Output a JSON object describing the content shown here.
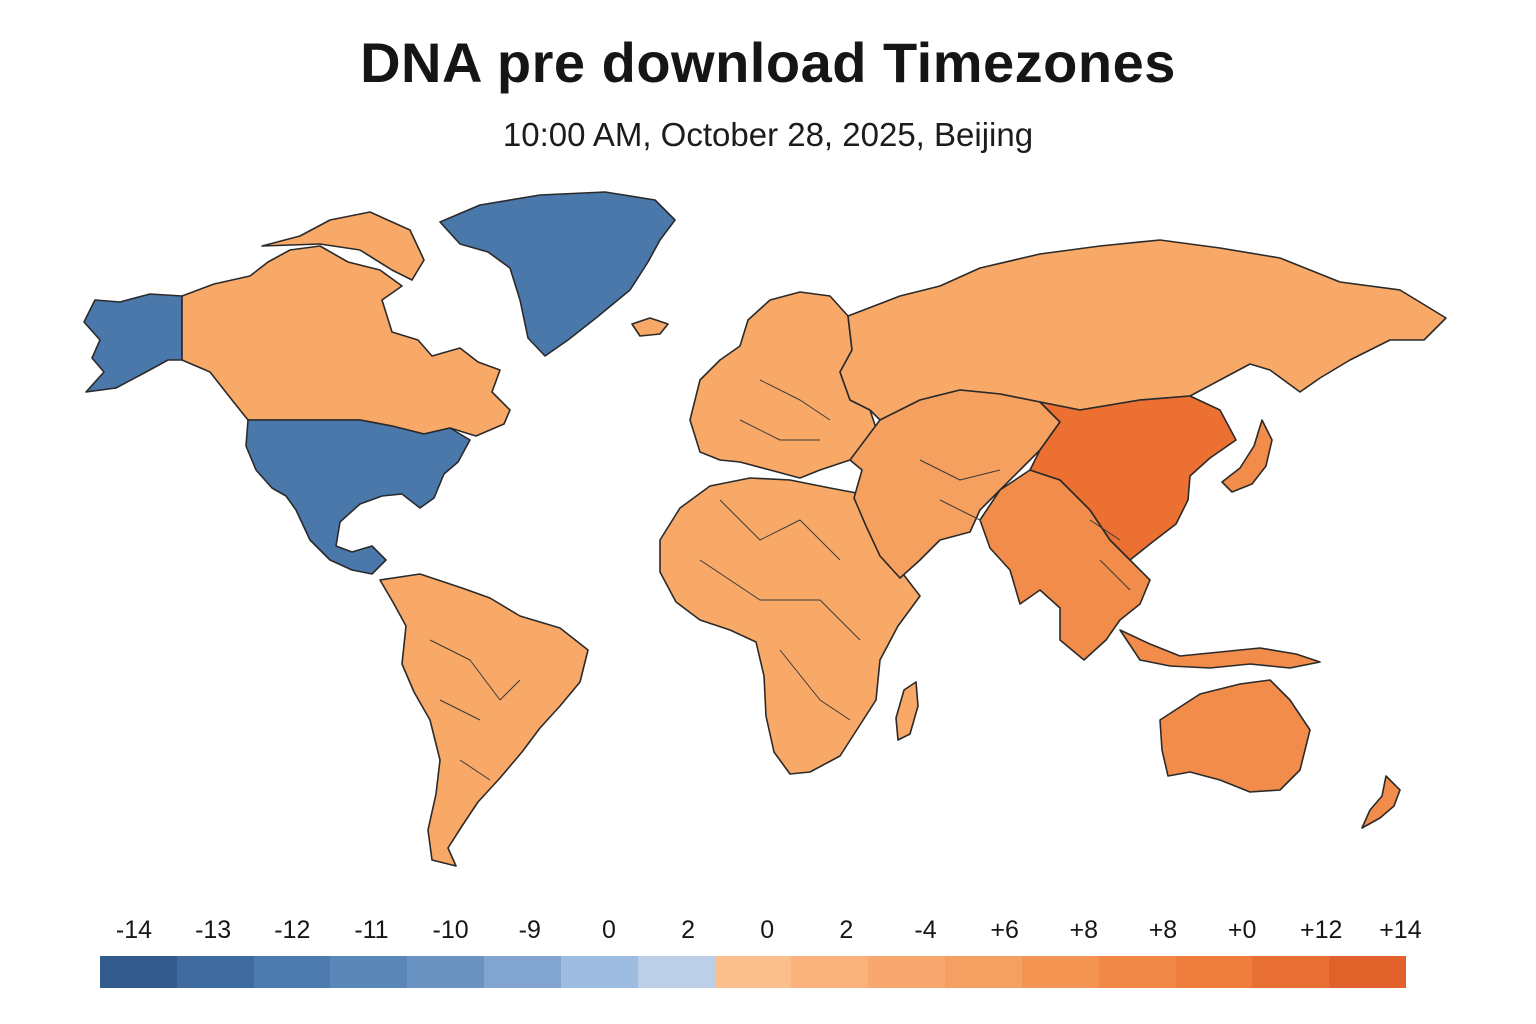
{
  "title": "DNA pre download Timezones",
  "subtitle": "10:00 AM, October 28, 2025, Beijing",
  "colors": {
    "blue_region": "#4a78ab",
    "orange_light": "#f8a968",
    "orange_mid": "#f28c4a",
    "orange_dark": "#ec7032",
    "outline": "#2a2a2a"
  },
  "map_regions": [
    {
      "name": "alaska",
      "color": "#4a78ab"
    },
    {
      "name": "greenland",
      "color": "#4a78ab"
    },
    {
      "name": "united-states-mexico",
      "color": "#4a78ab"
    },
    {
      "name": "canada",
      "color": "#f8a968"
    },
    {
      "name": "south-america",
      "color": "#f8a968"
    },
    {
      "name": "europe",
      "color": "#f8a968"
    },
    {
      "name": "africa",
      "color": "#f8a968"
    },
    {
      "name": "russia",
      "color": "#f8a968"
    },
    {
      "name": "middle-east-central-asia",
      "color": "#f6a060"
    },
    {
      "name": "india-southeast-asia",
      "color": "#f28c4a"
    },
    {
      "name": "china",
      "color": "#ec7032"
    },
    {
      "name": "japan",
      "color": "#f28c4a"
    },
    {
      "name": "australia",
      "color": "#f28c4a"
    },
    {
      "name": "new-zealand",
      "color": "#f28c4a"
    },
    {
      "name": "madagascar",
      "color": "#f8a968"
    },
    {
      "name": "iceland",
      "color": "#f8a968"
    }
  ],
  "legend": {
    "labels": [
      "-14",
      "-13",
      "-12",
      "-11",
      "-10",
      "-9",
      "0",
      "2",
      "0",
      "2",
      "-4",
      "+6",
      "+8",
      "+8",
      "+0",
      "+12",
      "+14"
    ],
    "colors": [
      "#335b8e",
      "#3f6a9f",
      "#4c79ae",
      "#5a86b8",
      "#6b93c2",
      "#81a5cf",
      "#9dbce0",
      "#bccfe6",
      "#fbbf8d",
      "#f9b27c",
      "#f8a86e",
      "#f69f62",
      "#f49453",
      "#f28847",
      "#ee7d3e",
      "#e97034",
      "#e1612b"
    ]
  }
}
